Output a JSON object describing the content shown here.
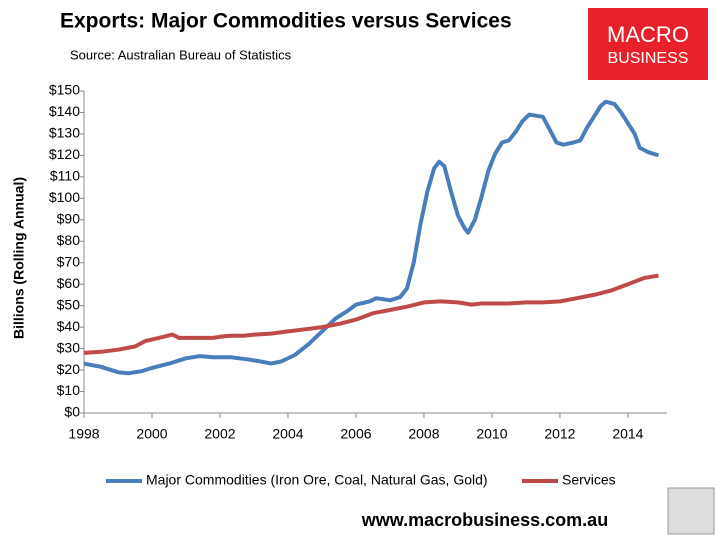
{
  "chart_data": {
    "type": "line",
    "title": "Exports: Major Commodities versus Services",
    "subtitle": "Source: Australian Bureau of Statistics",
    "y_label": "Billions (Rolling Annual)",
    "xlim": [
      1998,
      2015.15
    ],
    "xticks": [
      1998,
      2000,
      2002,
      2004,
      2006,
      2008,
      2010,
      2012,
      2014
    ],
    "ylim": [
      0,
      150
    ],
    "yticks": [
      {
        "value": 0,
        "label": "$0"
      },
      {
        "value": 10,
        "label": "$10"
      },
      {
        "value": 20,
        "label": "$20"
      },
      {
        "value": 30,
        "label": "$30"
      },
      {
        "value": 40,
        "label": "$40"
      },
      {
        "value": 50,
        "label": "$50"
      },
      {
        "value": 60,
        "label": "$60"
      },
      {
        "value": 70,
        "label": "$70"
      },
      {
        "value": 80,
        "label": "$80"
      },
      {
        "value": 90,
        "label": "$90"
      },
      {
        "value": 100,
        "label": "$100"
      },
      {
        "value": 110,
        "label": "$110"
      },
      {
        "value": 120,
        "label": "$120"
      },
      {
        "value": 130,
        "label": "$130"
      },
      {
        "value": 140,
        "label": "$140"
      },
      {
        "value": 150,
        "label": "$150"
      }
    ],
    "grid": false,
    "legend": "bottom",
    "series": [
      {
        "name": "Major Commodities (Iron Ore, Coal, Natural Gas, Gold)",
        "color": "#4a7ebb",
        "x": [
          1998.0,
          1998.5,
          1999.0,
          1999.3,
          1999.7,
          2000.0,
          2000.5,
          2001.0,
          2001.4,
          2001.8,
          2002.3,
          2002.8,
          2003.2,
          2003.5,
          2003.8,
          2004.2,
          2004.6,
          2005.0,
          2005.4,
          2005.7,
          2006.0,
          2006.4,
          2006.6,
          2006.8,
          2007.0,
          2007.3,
          2007.5,
          2007.7,
          2007.9,
          2008.1,
          2008.3,
          2008.45,
          2008.6,
          2008.8,
          2009.0,
          2009.2,
          2009.3,
          2009.5,
          2009.7,
          2009.9,
          2010.1,
          2010.3,
          2010.5,
          2010.7,
          2010.9,
          2011.1,
          2011.3,
          2011.5,
          2011.7,
          2011.9,
          2012.1,
          2012.4,
          2012.6,
          2012.8,
          2013.0,
          2013.2,
          2013.35,
          2013.6,
          2013.8,
          2014.0,
          2014.2,
          2014.35,
          2014.6,
          2014.9
        ],
        "values": [
          23,
          21.5,
          19,
          18.5,
          19.5,
          21,
          23,
          25.5,
          26.5,
          26,
          26,
          25,
          24,
          23,
          24,
          27,
          32,
          38,
          44,
          47,
          50.5,
          52,
          53.5,
          53,
          52.5,
          54,
          58,
          70,
          88,
          103,
          114,
          117,
          115,
          103,
          92,
          86,
          84,
          90,
          101,
          113,
          121,
          126,
          127,
          131,
          136,
          139,
          138.5,
          138,
          132,
          126,
          125,
          126,
          127,
          133,
          138,
          143,
          145,
          144,
          140,
          135,
          130,
          123.5,
          121.5,
          120
        ]
      },
      {
        "name": "Services",
        "color": "#be4b48",
        "x": [
          1998.0,
          1998.5,
          1999.0,
          1999.5,
          1999.8,
          2000.2,
          2000.6,
          2000.8,
          2001.2,
          2001.8,
          2002.0,
          2002.3,
          2002.7,
          2003.0,
          2003.5,
          2004.0,
          2004.5,
          2005.0,
          2005.5,
          2006.0,
          2006.5,
          2007.0,
          2007.5,
          2008.0,
          2008.5,
          2009.0,
          2009.4,
          2009.7,
          2010.0,
          2010.5,
          2011.0,
          2011.5,
          2012.0,
          2012.5,
          2013.0,
          2013.5,
          2014.0,
          2014.5,
          2014.9
        ],
        "values": [
          28,
          28.5,
          29.5,
          31,
          33.5,
          35,
          36.5,
          35,
          35,
          35,
          35.5,
          36,
          36,
          36.5,
          37,
          38,
          39,
          40,
          41.5,
          43.5,
          46.5,
          48,
          49.5,
          51.5,
          52,
          51.5,
          50.5,
          51,
          51,
          51,
          51.5,
          51.5,
          52,
          53.5,
          55,
          57,
          60,
          63,
          64
        ]
      }
    ]
  },
  "logo": {
    "line1": "MACRO",
    "line2": "BUSINESS"
  },
  "website": "www.macrobusiness.com.au"
}
